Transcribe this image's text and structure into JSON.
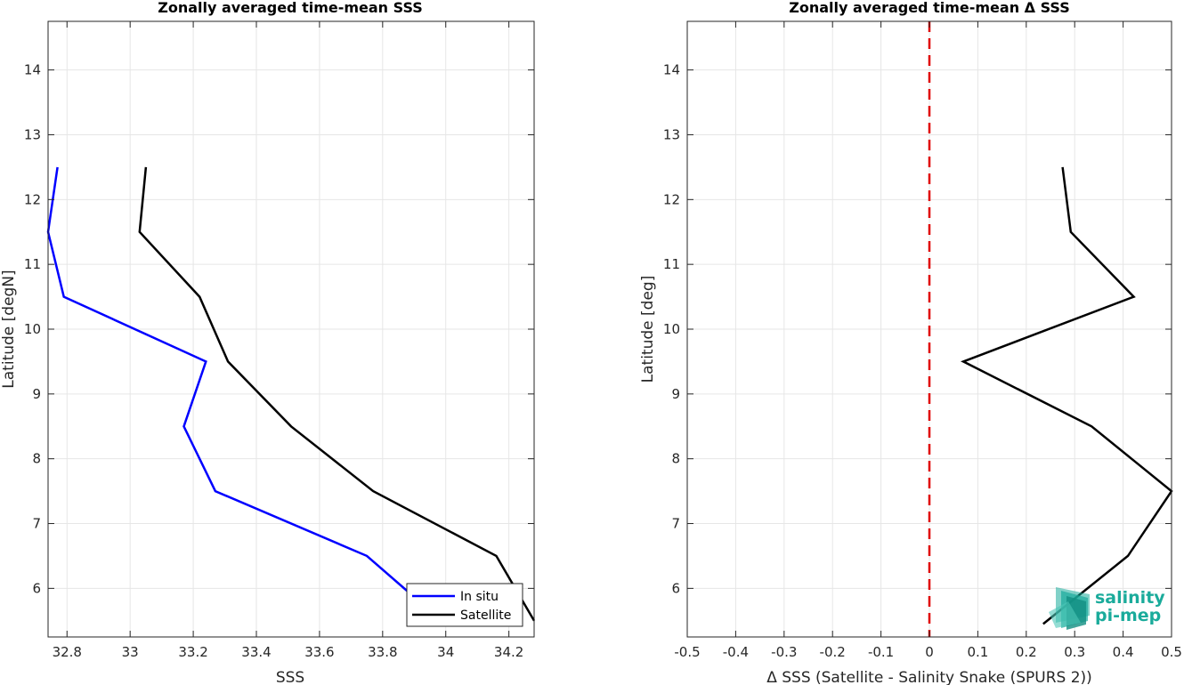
{
  "chart_data": [
    {
      "type": "line",
      "title": "Zonally averaged time-mean SSS",
      "xlabel": "SSS",
      "ylabel": "Latitude [degN]",
      "xlim": [
        32.74,
        34.28
      ],
      "ylim": [
        5.25,
        14.75
      ],
      "xticks": [
        32.8,
        33,
        33.2,
        33.4,
        33.6,
        33.8,
        34,
        34.2
      ],
      "xtick_labels": [
        "32.8",
        "33",
        "33.2",
        "33.4",
        "33.6",
        "33.8",
        "34",
        "34.2"
      ],
      "yticks": [
        6,
        7,
        8,
        9,
        10,
        11,
        12,
        13,
        14
      ],
      "ytick_labels": [
        "6",
        "7",
        "8",
        "9",
        "10",
        "11",
        "12",
        "13",
        "14"
      ],
      "grid": true,
      "legend_position": "bottom-right",
      "series": [
        {
          "name": "In situ",
          "color": "#0000ff",
          "x": [
            32.77,
            32.74,
            32.79,
            33.24,
            33.17,
            33.27,
            33.75,
            33.88
          ],
          "y": [
            12.5,
            11.5,
            10.5,
            9.5,
            8.5,
            7.5,
            6.5,
            5.95
          ]
        },
        {
          "name": "Satellite",
          "color": "#000000",
          "x": [
            33.05,
            33.03,
            33.22,
            33.31,
            33.51,
            33.77,
            34.16,
            34.28
          ],
          "y": [
            12.5,
            11.5,
            10.5,
            9.5,
            8.5,
            7.5,
            6.5,
            5.5
          ]
        }
      ]
    },
    {
      "type": "line",
      "title": "Zonally averaged time-mean Δ SSS",
      "xlabel": "Δ SSS (Satellite - Salinity Snake (SPURS 2))",
      "ylabel": "Latitude [deg]",
      "xlim": [
        -0.5,
        0.5
      ],
      "ylim": [
        5.25,
        14.75
      ],
      "xticks": [
        -0.5,
        -0.4,
        -0.3,
        -0.2,
        -0.1,
        0,
        0.1,
        0.2,
        0.3,
        0.4,
        0.5
      ],
      "xtick_labels": [
        "-0.5",
        "-0.4",
        "-0.3",
        "-0.2",
        "-0.1",
        "0",
        "0.1",
        "0.2",
        "0.3",
        "0.4",
        "0.5"
      ],
      "yticks": [
        6,
        7,
        8,
        9,
        10,
        11,
        12,
        13,
        14
      ],
      "ytick_labels": [
        "6",
        "7",
        "8",
        "9",
        "10",
        "11",
        "12",
        "13",
        "14"
      ],
      "grid": true,
      "reference_line": {
        "x": 0,
        "color": "#e00000",
        "style": "dashed"
      },
      "series": [
        {
          "color": "#000000",
          "x": [
            0.275,
            0.292,
            0.422,
            0.07,
            0.335,
            0.5,
            0.41,
            0.235
          ],
          "y": [
            12.5,
            11.5,
            10.5,
            9.5,
            8.5,
            7.5,
            6.5,
            5.45
          ]
        }
      ]
    }
  ],
  "logo": {
    "line1": "salinity",
    "line2": "pi-mep",
    "color": "#1aab9b"
  }
}
